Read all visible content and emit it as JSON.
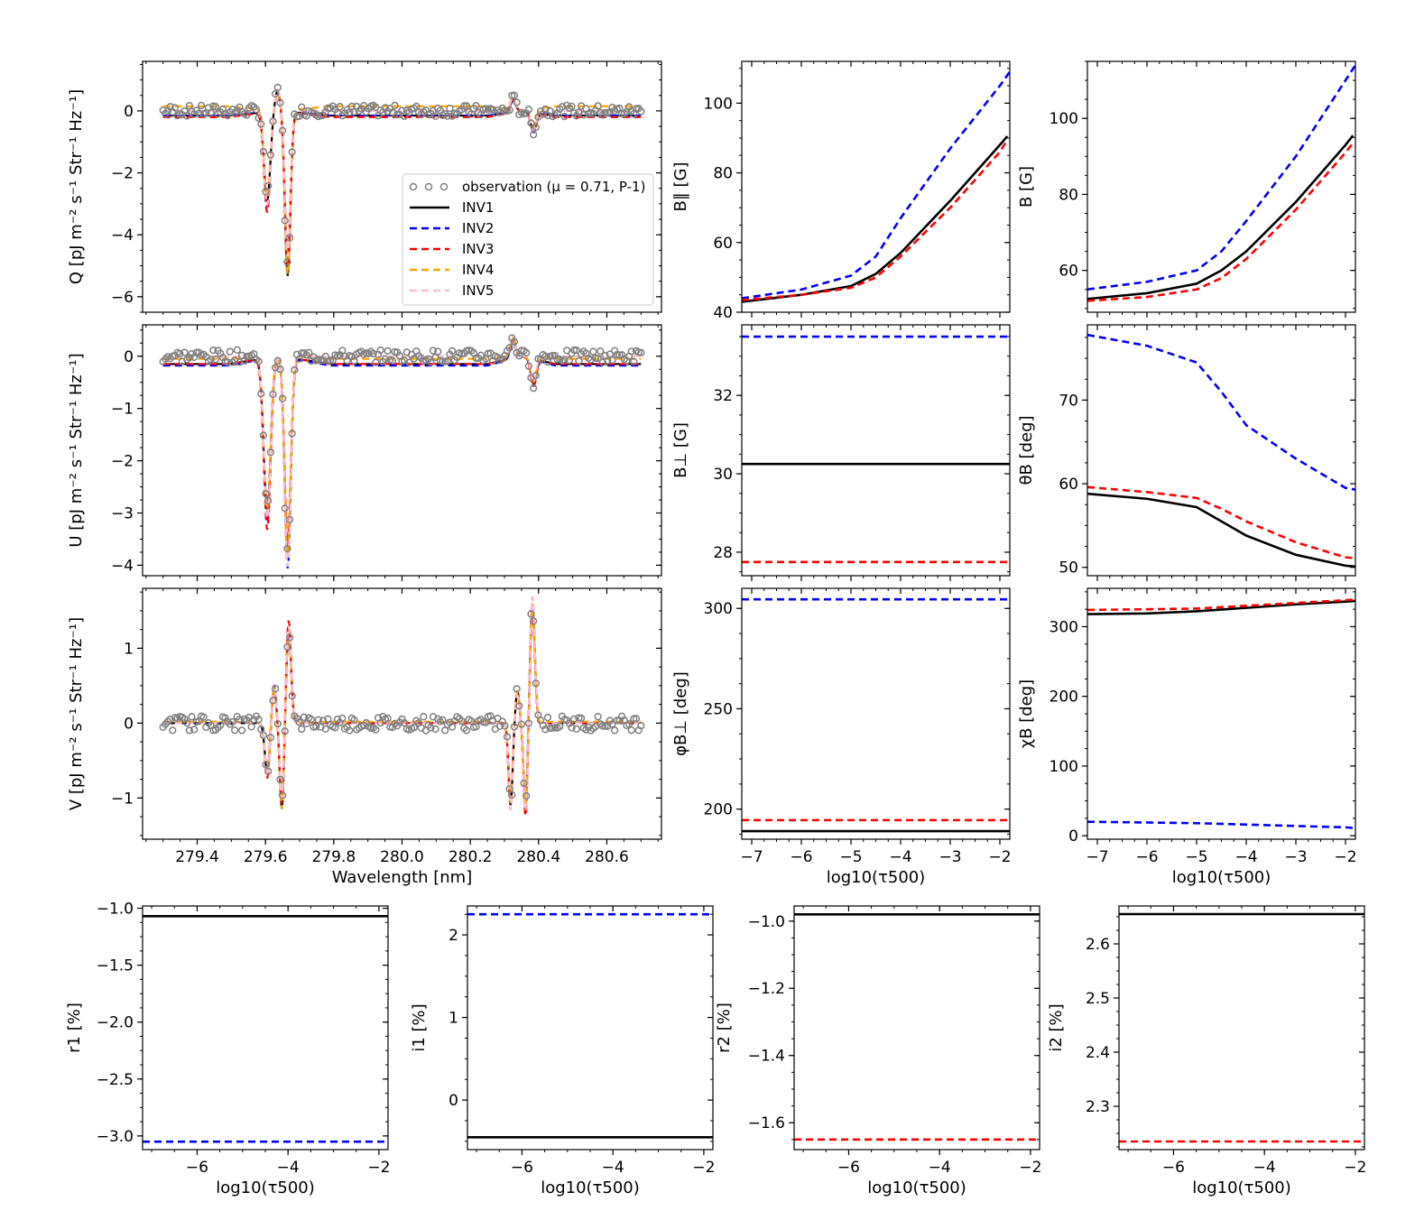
{
  "figure": {
    "legend_entries": [
      {
        "label": "observation (μ = 0.71, P-1)",
        "color": "#808080",
        "style": "circles"
      },
      {
        "label": "INV1",
        "color": "#000000",
        "style": "solid"
      },
      {
        "label": "INV2",
        "color": "#0000ff",
        "style": "dashed"
      },
      {
        "label": "INV3",
        "color": "#ff0000",
        "style": "dashed"
      },
      {
        "label": "INV4",
        "color": "#ffa500",
        "style": "dashed"
      },
      {
        "label": "INV5",
        "color": "#ffc0cb",
        "style": "dashed"
      }
    ]
  },
  "chart_data": [
    {
      "id": "Q",
      "type": "line",
      "title": "",
      "xlabel": "Wavelength [nm]",
      "ylabel": "Q  [pJ m⁻² s⁻¹ Str⁻¹ Hz⁻¹]",
      "xlim": [
        279.24,
        280.76
      ],
      "ylim": [
        -6.5,
        1.6
      ],
      "xticks": [
        279.4,
        279.6,
        279.8,
        280.0,
        280.2,
        280.4,
        280.6
      ],
      "xtick_labels": [],
      "yticks": [
        -6,
        -4,
        -2,
        0
      ],
      "ytick_labels": [
        "−6",
        "−4",
        "−2",
        "0"
      ],
      "features": [
        {
          "c": 279.605,
          "w": 0.009,
          "a": -3.05
        },
        {
          "c": 279.635,
          "w": 0.008,
          "a": 0.65
        },
        {
          "c": 279.665,
          "w": 0.008,
          "a": -5.0
        },
        {
          "c": 280.325,
          "w": 0.008,
          "a": 0.4
        },
        {
          "c": 280.385,
          "w": 0.008,
          "a": -0.6
        }
      ],
      "series": [
        {
          "name": "INV1",
          "color": "#000000",
          "dash": "",
          "offset": -0.15
        },
        {
          "name": "INV2",
          "color": "#0000ff",
          "dash": "8,5",
          "offset": -0.15
        },
        {
          "name": "INV3",
          "color": "#ff0000",
          "dash": "8,5",
          "offset": -0.2
        },
        {
          "name": "INV4",
          "color": "#ffa500",
          "dash": "8,5",
          "offset": 0.15
        },
        {
          "name": "INV5",
          "color": "#ffc0cb",
          "dash": "8,5",
          "offset": 0.0
        }
      ],
      "observation": {
        "name": "observation (μ = 0.71, P-1)",
        "noise": 0.18
      }
    },
    {
      "id": "U",
      "type": "line",
      "title": "",
      "xlabel": "",
      "ylabel": "U  [pJ m⁻² s⁻¹ Str⁻¹ Hz⁻¹]",
      "xlim": [
        279.24,
        280.76
      ],
      "ylim": [
        -4.2,
        0.6
      ],
      "xticks": [
        279.4,
        279.6,
        279.8,
        280.0,
        280.2,
        280.4,
        280.6
      ],
      "xtick_labels": [],
      "yticks": [
        -4,
        -3,
        -2,
        -1,
        0
      ],
      "ytick_labels": [
        "−4",
        "−3",
        "−2",
        "−1",
        "0"
      ],
      "features": [
        {
          "c": 279.605,
          "w": 0.01,
          "a": -3.1
        },
        {
          "c": 279.665,
          "w": 0.009,
          "a": -3.8
        },
        {
          "c": 280.325,
          "w": 0.008,
          "a": 0.35
        },
        {
          "c": 280.385,
          "w": 0.008,
          "a": -0.5
        }
      ],
      "series": [
        {
          "name": "INV1",
          "color": "#000000",
          "dash": "",
          "offset": -0.15
        },
        {
          "name": "INV2",
          "color": "#0000ff",
          "dash": "8,5",
          "offset": -0.18
        },
        {
          "name": "INV3",
          "color": "#ff0000",
          "dash": "8,5",
          "offset": -0.15
        },
        {
          "name": "INV4",
          "color": "#ffa500",
          "dash": "8,5",
          "offset": -0.05
        },
        {
          "name": "INV5",
          "color": "#ffc0cb",
          "dash": "8,5",
          "offset": 0.0
        }
      ],
      "observation": {
        "name": "observation (μ = 0.71, P-1)",
        "noise": 0.12
      }
    },
    {
      "id": "V",
      "type": "line",
      "title": "",
      "xlabel": "Wavelength [nm]",
      "ylabel": "V  [pJ m⁻² s⁻¹ Str⁻¹ Hz⁻¹]",
      "xlim": [
        279.24,
        280.76
      ],
      "ylim": [
        -1.55,
        1.8
      ],
      "xticks": [
        279.4,
        279.6,
        279.8,
        280.0,
        280.2,
        280.4,
        280.6
      ],
      "xtick_labels": [
        "279.4",
        "279.6",
        "279.8",
        "280.0",
        "280.2",
        "280.4",
        "280.6"
      ],
      "yticks": [
        -1,
        0,
        1
      ],
      "ytick_labels": [
        "−1",
        "0",
        "1"
      ],
      "features": [
        {
          "c": 279.605,
          "w": 0.007,
          "a": -0.7
        },
        {
          "c": 279.625,
          "w": 0.006,
          "a": 0.5
        },
        {
          "c": 279.648,
          "w": 0.006,
          "a": -1.1
        },
        {
          "c": 279.668,
          "w": 0.007,
          "a": 1.3
        },
        {
          "c": 280.318,
          "w": 0.006,
          "a": -1.1
        },
        {
          "c": 280.338,
          "w": 0.006,
          "a": 0.4
        },
        {
          "c": 280.362,
          "w": 0.006,
          "a": -1.2
        },
        {
          "c": 280.382,
          "w": 0.007,
          "a": 1.6
        }
      ],
      "series": [
        {
          "name": "INV1",
          "color": "#000000",
          "dash": "",
          "offset": 0.0
        },
        {
          "name": "INV2",
          "color": "#0000ff",
          "dash": "8,5",
          "offset": 0.0
        },
        {
          "name": "INV3",
          "color": "#ff0000",
          "dash": "8,5",
          "offset": 0.0
        },
        {
          "name": "INV4",
          "color": "#ffa500",
          "dash": "8,5",
          "offset": 0.02
        },
        {
          "name": "INV5",
          "color": "#ffc0cb",
          "dash": "8,5",
          "offset": 0.0
        }
      ],
      "observation": {
        "name": "observation (μ = 0.71, P-1)",
        "noise": 0.1
      }
    },
    {
      "id": "Bpar",
      "type": "line",
      "xlabel": "",
      "ylabel": "B∥ [G]",
      "xlim": [
        -7.2,
        -1.8
      ],
      "ylim": [
        40,
        112
      ],
      "xticks": [
        -7,
        -6,
        -5,
        -4,
        -3,
        -2
      ],
      "xtick_labels": [],
      "yticks": [
        40,
        60,
        80,
        100
      ],
      "ytick_labels": [
        "40",
        "60",
        "80",
        "100"
      ],
      "series": [
        {
          "name": "INV1",
          "color": "#000000",
          "dash": "",
          "x": [
            -7.2,
            -6,
            -5,
            -4.5,
            -4,
            -3,
            -2,
            -1.85
          ],
          "y": [
            43,
            45,
            47.5,
            51,
            57,
            72,
            88,
            90.5
          ]
        },
        {
          "name": "INV2",
          "color": "#0000ff",
          "dash": "8,5",
          "x": [
            -7.2,
            -6,
            -5,
            -4.5,
            -4,
            -3,
            -2,
            -1.8
          ],
          "y": [
            44,
            46.5,
            50.5,
            56,
            67,
            87,
            105,
            109
          ]
        },
        {
          "name": "INV3",
          "color": "#ff0000",
          "dash": "8,5",
          "x": [
            -7.2,
            -6,
            -5,
            -4.5,
            -4,
            -3,
            -2,
            -1.85
          ],
          "y": [
            43.5,
            45,
            47,
            50,
            56,
            70,
            86,
            89.5
          ]
        }
      ]
    },
    {
      "id": "B",
      "type": "line",
      "xlabel": "",
      "ylabel": "B [G]",
      "xlim": [
        -7.2,
        -1.8
      ],
      "ylim": [
        49,
        115
      ],
      "xticks": [
        -7,
        -6,
        -5,
        -4,
        -3,
        -2
      ],
      "xtick_labels": [],
      "yticks": [
        60,
        80,
        100
      ],
      "ytick_labels": [
        "60",
        "80",
        "100"
      ],
      "series": [
        {
          "name": "INV1",
          "color": "#000000",
          "dash": "",
          "x": [
            -7.2,
            -6,
            -5,
            -4.5,
            -4,
            -3,
            -2,
            -1.85
          ],
          "y": [
            52.5,
            54,
            56.5,
            60,
            65,
            78,
            93,
            95.5
          ]
        },
        {
          "name": "INV2",
          "color": "#0000ff",
          "dash": "8,5",
          "x": [
            -7.2,
            -6,
            -5,
            -4.5,
            -4,
            -3,
            -2,
            -1.8
          ],
          "y": [
            55,
            57,
            60,
            65,
            73,
            90,
            110,
            114
          ]
        },
        {
          "name": "INV3",
          "color": "#ff0000",
          "dash": "8,5",
          "x": [
            -7.2,
            -6,
            -5,
            -4.5,
            -4,
            -3,
            -2,
            -1.85
          ],
          "y": [
            52,
            53,
            55,
            58,
            63,
            76,
            91,
            93.5
          ]
        }
      ]
    },
    {
      "id": "Bperp",
      "type": "line",
      "xlabel": "",
      "ylabel": "B⊥ [G]",
      "xlim": [
        -7.2,
        -1.8
      ],
      "ylim": [
        27.4,
        33.8
      ],
      "xticks": [
        -7,
        -6,
        -5,
        -4,
        -3,
        -2
      ],
      "xtick_labels": [],
      "yticks": [
        28,
        30,
        32
      ],
      "ytick_labels": [
        "28",
        "30",
        "32"
      ],
      "series": [
        {
          "name": "INV1",
          "color": "#000000",
          "dash": "",
          "x": [
            -7.2,
            -1.8
          ],
          "y": [
            30.25,
            30.25
          ]
        },
        {
          "name": "INV2",
          "color": "#0000ff",
          "dash": "8,5",
          "x": [
            -7.2,
            -1.8
          ],
          "y": [
            33.5,
            33.5
          ]
        },
        {
          "name": "INV3",
          "color": "#ff0000",
          "dash": "8,5",
          "x": [
            -7.2,
            -1.8
          ],
          "y": [
            27.75,
            27.75
          ]
        }
      ]
    },
    {
      "id": "thetaB",
      "type": "line",
      "xlabel": "",
      "ylabel": "θB [deg]",
      "xlim": [
        -7.2,
        -1.8
      ],
      "ylim": [
        49,
        79
      ],
      "xticks": [
        -7,
        -6,
        -5,
        -4,
        -3,
        -2
      ],
      "xtick_labels": [],
      "yticks": [
        50,
        60,
        70
      ],
      "ytick_labels": [
        "50",
        "60",
        "70"
      ],
      "series": [
        {
          "name": "INV1",
          "color": "#000000",
          "dash": "",
          "x": [
            -7.2,
            -6,
            -5,
            -4.5,
            -4,
            -3,
            -2,
            -1.8
          ],
          "y": [
            58.8,
            58.2,
            57.2,
            55.5,
            53.8,
            51.5,
            50.2,
            50.1
          ]
        },
        {
          "name": "INV2",
          "color": "#0000ff",
          "dash": "8,5",
          "x": [
            -7.2,
            -6,
            -5,
            -4.5,
            -4,
            -3,
            -2,
            -1.8
          ],
          "y": [
            77.8,
            76.5,
            74.5,
            71,
            67,
            63,
            59.5,
            59.3
          ]
        },
        {
          "name": "INV3",
          "color": "#ff0000",
          "dash": "8,5",
          "x": [
            -7.2,
            -6,
            -5,
            -4.5,
            -4,
            -3,
            -2,
            -1.8
          ],
          "y": [
            59.6,
            59,
            58.3,
            57,
            55.5,
            53,
            51.2,
            51.1
          ]
        }
      ]
    },
    {
      "id": "phiB",
      "type": "line",
      "xlabel": "log10(τ500)",
      "ylabel": "φB⊥ [deg]",
      "xlim": [
        -7.2,
        -1.8
      ],
      "ylim": [
        185,
        310
      ],
      "xticks": [
        -7,
        -6,
        -5,
        -4,
        -3,
        -2
      ],
      "xtick_labels": [
        "−7",
        "−6",
        "−5",
        "−4",
        "−3",
        "−2"
      ],
      "yticks": [
        200,
        250,
        300
      ],
      "ytick_labels": [
        "200",
        "250",
        "300"
      ],
      "series": [
        {
          "name": "INV1",
          "color": "#000000",
          "dash": "",
          "x": [
            -7.2,
            -1.8
          ],
          "y": [
            189,
            189
          ]
        },
        {
          "name": "INV2",
          "color": "#0000ff",
          "dash": "8,5",
          "x": [
            -7.2,
            -1.8
          ],
          "y": [
            304.5,
            304.5
          ]
        },
        {
          "name": "INV3",
          "color": "#ff0000",
          "dash": "8,5",
          "x": [
            -7.2,
            -1.8
          ],
          "y": [
            194.5,
            194.5
          ]
        }
      ]
    },
    {
      "id": "chiB",
      "type": "line",
      "xlabel": "log10(τ500)",
      "ylabel": "χB [deg]",
      "xlim": [
        -7.2,
        -1.8
      ],
      "ylim": [
        -5,
        355
      ],
      "xticks": [
        -7,
        -6,
        -5,
        -4,
        -3,
        -2
      ],
      "xtick_labels": [
        "−7",
        "−6",
        "−5",
        "−4",
        "−3",
        "−2"
      ],
      "yticks": [
        0,
        100,
        200,
        300
      ],
      "ytick_labels": [
        "0",
        "100",
        "200",
        "300"
      ],
      "series": [
        {
          "name": "INV1",
          "color": "#000000",
          "dash": "",
          "x": [
            -7.2,
            -6,
            -5,
            -4,
            -3,
            -2,
            -1.8
          ],
          "y": [
            318,
            319,
            322,
            327,
            332,
            336,
            337
          ]
        },
        {
          "name": "INV2",
          "color": "#0000ff",
          "dash": "8,5",
          "x": [
            -7.2,
            -6,
            -5,
            -4,
            -3,
            -2,
            -1.8
          ],
          "y": [
            20,
            19,
            18,
            16,
            14,
            12,
            11
          ]
        },
        {
          "name": "INV3",
          "color": "#ff0000",
          "dash": "8,5",
          "x": [
            -7.2,
            -6,
            -5,
            -4,
            -3,
            -2,
            -1.8
          ],
          "y": [
            324,
            325,
            326,
            330,
            334,
            338,
            339
          ]
        }
      ]
    },
    {
      "id": "r1",
      "type": "line",
      "xlabel": "log10(τ500)",
      "ylabel": "r1  [%]",
      "xlim": [
        -7.2,
        -1.8
      ],
      "ylim": [
        -3.12,
        -0.98
      ],
      "xticks": [
        -6,
        -4,
        -2
      ],
      "xtick_labels": [
        "−6",
        "−4",
        "−2"
      ],
      "yticks": [
        -3.0,
        -2.5,
        -2.0,
        -1.5,
        -1.0
      ],
      "ytick_labels": [
        "−3.0",
        "−2.5",
        "−2.0",
        "−1.5",
        "−1.0"
      ],
      "series": [
        {
          "name": "INV1",
          "color": "#000000",
          "dash": "",
          "x": [
            -7.2,
            -1.8
          ],
          "y": [
            -1.07,
            -1.07
          ]
        },
        {
          "name": "INV2",
          "color": "#0000ff",
          "dash": "8,5",
          "x": [
            -7.2,
            -1.8
          ],
          "y": [
            -3.05,
            -3.05
          ]
        }
      ]
    },
    {
      "id": "i1",
      "type": "line",
      "xlabel": "log10(τ500)",
      "ylabel": "i1  [%]",
      "xlim": [
        -7.2,
        -1.8
      ],
      "ylim": [
        -0.6,
        2.35
      ],
      "xticks": [
        -6,
        -4,
        -2
      ],
      "xtick_labels": [
        "−6",
        "−4",
        "−2"
      ],
      "yticks": [
        0,
        1,
        2
      ],
      "ytick_labels": [
        "0",
        "1",
        "2"
      ],
      "series": [
        {
          "name": "INV1",
          "color": "#000000",
          "dash": "",
          "x": [
            -7.2,
            -1.8
          ],
          "y": [
            -0.45,
            -0.45
          ]
        },
        {
          "name": "INV2",
          "color": "#0000ff",
          "dash": "8,5",
          "x": [
            -7.2,
            -1.8
          ],
          "y": [
            2.25,
            2.25
          ]
        }
      ]
    },
    {
      "id": "r2",
      "type": "line",
      "xlabel": "log10(τ500)",
      "ylabel": "r2  [%]",
      "xlim": [
        -7.2,
        -1.8
      ],
      "ylim": [
        -1.68,
        -0.955
      ],
      "xticks": [
        -6,
        -4,
        -2
      ],
      "xtick_labels": [
        "−6",
        "−4",
        "−2"
      ],
      "yticks": [
        -1.6,
        -1.4,
        -1.2,
        -1.0
      ],
      "ytick_labels": [
        "−1.6",
        "−1.4",
        "−1.2",
        "−1.0"
      ],
      "series": [
        {
          "name": "INV1",
          "color": "#000000",
          "dash": "",
          "x": [
            -7.2,
            -1.8
          ],
          "y": [
            -0.98,
            -0.98
          ]
        },
        {
          "name": "INV3",
          "color": "#ff0000",
          "dash": "8,5",
          "x": [
            -7.2,
            -1.8
          ],
          "y": [
            -1.65,
            -1.65
          ]
        }
      ]
    },
    {
      "id": "i2",
      "type": "line",
      "xlabel": "log10(τ500)",
      "ylabel": "i2  [%]",
      "xlim": [
        -7.2,
        -1.8
      ],
      "ylim": [
        2.22,
        2.67
      ],
      "xticks": [
        -6,
        -4,
        -2
      ],
      "xtick_labels": [
        "−6",
        "−4",
        "−2"
      ],
      "yticks": [
        2.3,
        2.4,
        2.5,
        2.6
      ],
      "ytick_labels": [
        "2.3",
        "2.4",
        "2.5",
        "2.6"
      ],
      "series": [
        {
          "name": "INV1",
          "color": "#000000",
          "dash": "",
          "x": [
            -7.2,
            -1.8
          ],
          "y": [
            2.655,
            2.655
          ]
        },
        {
          "name": "INV3",
          "color": "#ff0000",
          "dash": "8,5",
          "x": [
            -7.2,
            -1.8
          ],
          "y": [
            2.235,
            2.235
          ]
        }
      ]
    }
  ]
}
